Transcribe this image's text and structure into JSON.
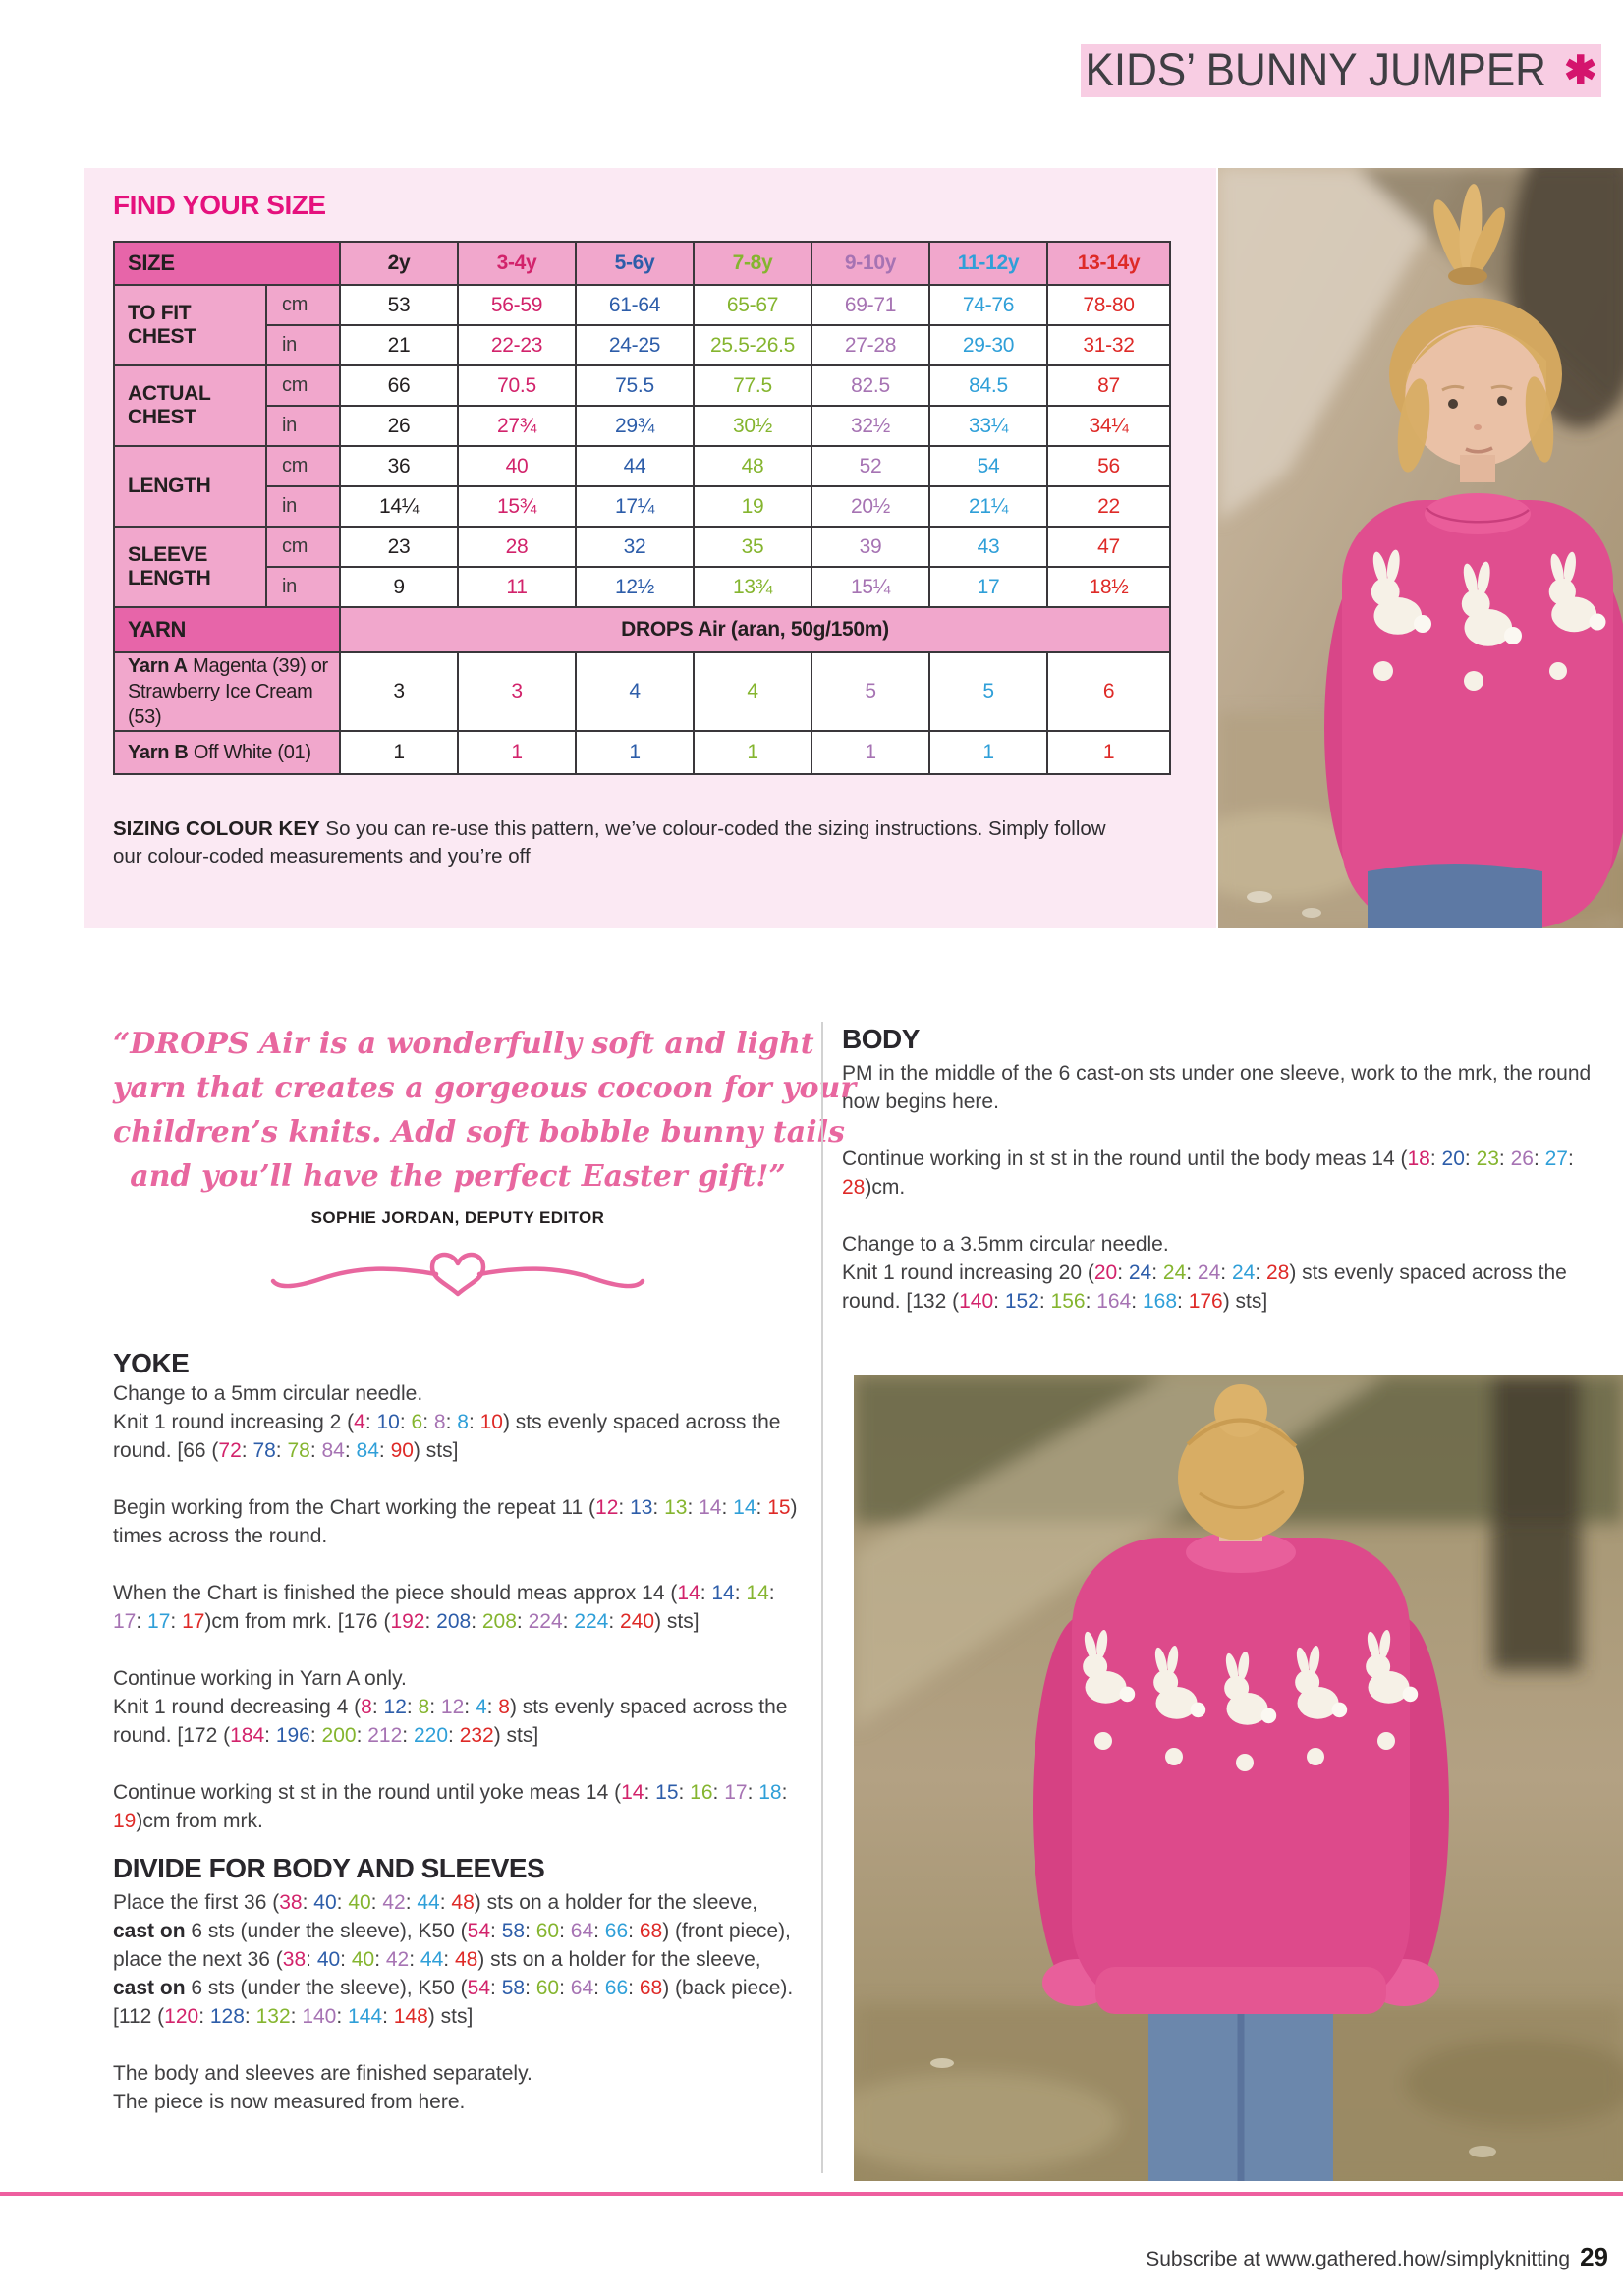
{
  "header": {
    "title": "KIDS’ BUNNY JUMPER",
    "flower_glyph": "✱"
  },
  "colors": {
    "accent_magenta": "#e5117d",
    "panel_pink": "#fbe9f3",
    "title_bar_pink": "#f8cde3",
    "table_corner_pink": "#e765a9",
    "table_label_pink": "#f1a7cc",
    "footer_rule_pink": "#ee5f9f",
    "size_text_colors": {
      "s1": "#231f20",
      "s2": "#d2236b",
      "s3": "#2d5da9",
      "s4": "#85b52f",
      "s5": "#a673b3",
      "s6": "#2f9fd8",
      "s7": "#de2a27"
    }
  },
  "size_table": {
    "heading": "FIND YOUR SIZE",
    "corner_label": "SIZE",
    "columns": [
      "2y",
      "3-4y",
      "5-6y",
      "7-8y",
      "9-10y",
      "11-12y",
      "13-14y"
    ],
    "units": [
      "cm",
      "in"
    ],
    "groups": [
      {
        "label": "TO FIT CHEST",
        "cm": [
          "53",
          "56-59",
          "61-64",
          "65-67",
          "69-71",
          "74-76",
          "78-80"
        ],
        "in": [
          "21",
          "22-23",
          "24-25",
          "25.5-26.5",
          "27-28",
          "29-30",
          "31-32"
        ]
      },
      {
        "label": "ACTUAL CHEST",
        "cm": [
          "66",
          "70.5",
          "75.5",
          "77.5",
          "82.5",
          "84.5",
          "87"
        ],
        "in": [
          "26",
          "27¾",
          "29¾",
          "30½",
          "32½",
          "33¼",
          "34¼"
        ]
      },
      {
        "label": "LENGTH",
        "cm": [
          "36",
          "40",
          "44",
          "48",
          "52",
          "54",
          "56"
        ],
        "in": [
          "14¼",
          "15¾",
          "17¼",
          "19",
          "20½",
          "21¼",
          "22"
        ]
      },
      {
        "label": "SLEEVE LENGTH",
        "cm": [
          "23",
          "28",
          "32",
          "35",
          "39",
          "43",
          "47"
        ],
        "in": [
          "9",
          "11",
          "12½",
          "13¾",
          "15¼",
          "17",
          "18½"
        ]
      }
    ],
    "yarn_label": "YARN",
    "yarn_value": "DROPS Air (aran, 50g/150m)",
    "yarn_a": {
      "bold": "Yarn A",
      "rest": " Magenta (39) or Strawberry Ice Cream (53)",
      "values": [
        "3",
        "3",
        "4",
        "4",
        "5",
        "5",
        "6"
      ]
    },
    "yarn_b": {
      "bold": "Yarn B",
      "rest": " Off White (01)",
      "values": [
        "1",
        "1",
        "1",
        "1",
        "1",
        "1",
        "1"
      ]
    }
  },
  "sizing_key": {
    "bold": "SIZING COLOUR KEY",
    "text": " So you can re-use this pattern, we’ve colour-coded the sizing instructions. Simply follow our colour-coded measurements and you’re off"
  },
  "quote": {
    "lines": [
      "“DROPS Air is a wonderfully soft and light",
      "yarn that creates a gorgeous cocoon for your",
      "children’s knits. Add soft bobble bunny tails",
      "and you’ll have the perfect Easter gift!”"
    ],
    "attribution": "SOPHIE JORDAN, DEPUTY EDITOR"
  },
  "sections": {
    "yoke": {
      "heading": "YOKE",
      "paras": [
        [
          {
            "t": "Change to a 5mm circular needle."
          }
        ],
        [
          {
            "t": "Knit 1 round increasing 2 ("
          },
          {
            "t": "4",
            "c": "s2"
          },
          {
            "t": ": "
          },
          {
            "t": "10",
            "c": "s3"
          },
          {
            "t": ": "
          },
          {
            "t": "6",
            "c": "s4"
          },
          {
            "t": ": "
          },
          {
            "t": "8",
            "c": "s5"
          },
          {
            "t": ": "
          },
          {
            "t": "8",
            "c": "s6"
          },
          {
            "t": ": "
          },
          {
            "t": "10",
            "c": "s7"
          },
          {
            "t": ") sts evenly spaced across the round. [66 ("
          },
          {
            "t": "72",
            "c": "s2"
          },
          {
            "t": ": "
          },
          {
            "t": "78",
            "c": "s3"
          },
          {
            "t": ": "
          },
          {
            "t": "78",
            "c": "s4"
          },
          {
            "t": ": "
          },
          {
            "t": "84",
            "c": "s5"
          },
          {
            "t": ": "
          },
          {
            "t": "84",
            "c": "s6"
          },
          {
            "t": ": "
          },
          {
            "t": "90",
            "c": "s7"
          },
          {
            "t": ") sts]"
          }
        ],
        [
          {
            "t": "Begin working from the Chart working the repeat 11 ("
          },
          {
            "t": "12",
            "c": "s2"
          },
          {
            "t": ": "
          },
          {
            "t": "13",
            "c": "s3"
          },
          {
            "t": ": "
          },
          {
            "t": "13",
            "c": "s4"
          },
          {
            "t": ": "
          },
          {
            "t": "14",
            "c": "s5"
          },
          {
            "t": ": "
          },
          {
            "t": "14",
            "c": "s6"
          },
          {
            "t": ": "
          },
          {
            "t": "15",
            "c": "s7"
          },
          {
            "t": ") times across the round."
          }
        ],
        [
          {
            "t": "When the Chart is finished the piece should meas approx 14 ("
          },
          {
            "t": "14",
            "c": "s2"
          },
          {
            "t": ": "
          },
          {
            "t": "14",
            "c": "s3"
          },
          {
            "t": ": "
          },
          {
            "t": "14",
            "c": "s4"
          },
          {
            "t": ": "
          },
          {
            "t": "17",
            "c": "s5"
          },
          {
            "t": ": "
          },
          {
            "t": "17",
            "c": "s6"
          },
          {
            "t": ": "
          },
          {
            "t": "17",
            "c": "s7"
          },
          {
            "t": ")cm from mrk. [176 ("
          },
          {
            "t": "192",
            "c": "s2"
          },
          {
            "t": ": "
          },
          {
            "t": "208",
            "c": "s3"
          },
          {
            "t": ": "
          },
          {
            "t": "208",
            "c": "s4"
          },
          {
            "t": ": "
          },
          {
            "t": "224",
            "c": "s5"
          },
          {
            "t": ": "
          },
          {
            "t": "224",
            "c": "s6"
          },
          {
            "t": ": "
          },
          {
            "t": "240",
            "c": "s7"
          },
          {
            "t": ") sts]"
          }
        ],
        [
          {
            "t": "Continue working in Yarn A only."
          }
        ],
        [
          {
            "t": "Knit 1 round decreasing 4 ("
          },
          {
            "t": "8",
            "c": "s2"
          },
          {
            "t": ": "
          },
          {
            "t": "12",
            "c": "s3"
          },
          {
            "t": ": "
          },
          {
            "t": "8",
            "c": "s4"
          },
          {
            "t": ": "
          },
          {
            "t": "12",
            "c": "s5"
          },
          {
            "t": ": "
          },
          {
            "t": "4",
            "c": "s6"
          },
          {
            "t": ": "
          },
          {
            "t": "8",
            "c": "s7"
          },
          {
            "t": ") sts evenly spaced across the round. [172 ("
          },
          {
            "t": "184",
            "c": "s2"
          },
          {
            "t": ": "
          },
          {
            "t": "196",
            "c": "s3"
          },
          {
            "t": ": "
          },
          {
            "t": "200",
            "c": "s4"
          },
          {
            "t": ": "
          },
          {
            "t": "212",
            "c": "s5"
          },
          {
            "t": ": "
          },
          {
            "t": "220",
            "c": "s6"
          },
          {
            "t": ": "
          },
          {
            "t": "232",
            "c": "s7"
          },
          {
            "t": ") sts]"
          }
        ],
        [
          {
            "t": "Continue working st st in the round until yoke meas 14 ("
          },
          {
            "t": "14",
            "c": "s2"
          },
          {
            "t": ": "
          },
          {
            "t": "15",
            "c": "s3"
          },
          {
            "t": ": "
          },
          {
            "t": "16",
            "c": "s4"
          },
          {
            "t": ": "
          },
          {
            "t": "17",
            "c": "s5"
          },
          {
            "t": ": "
          },
          {
            "t": "18",
            "c": "s6"
          },
          {
            "t": ": "
          },
          {
            "t": "19",
            "c": "s7"
          },
          {
            "t": ")cm from mrk."
          }
        ]
      ]
    },
    "divide": {
      "heading": "DIVIDE FOR BODY AND SLEEVES",
      "paras": [
        [
          {
            "t": "Place the first 36 ("
          },
          {
            "t": "38",
            "c": "s2"
          },
          {
            "t": ": "
          },
          {
            "t": "40",
            "c": "s3"
          },
          {
            "t": ": "
          },
          {
            "t": "40",
            "c": "s4"
          },
          {
            "t": ": "
          },
          {
            "t": "42",
            "c": "s5"
          },
          {
            "t": ": "
          },
          {
            "t": "44",
            "c": "s6"
          },
          {
            "t": ": "
          },
          {
            "t": "48",
            "c": "s7"
          },
          {
            "t": ") sts on a holder for the sleeve, "
          },
          {
            "t": "cast on",
            "b": true
          },
          {
            "t": " 6 sts (under the sleeve), K50 ("
          },
          {
            "t": "54",
            "c": "s2"
          },
          {
            "t": ": "
          },
          {
            "t": "58",
            "c": "s3"
          },
          {
            "t": ": "
          },
          {
            "t": "60",
            "c": "s4"
          },
          {
            "t": ": "
          },
          {
            "t": "64",
            "c": "s5"
          },
          {
            "t": ": "
          },
          {
            "t": "66",
            "c": "s6"
          },
          {
            "t": ": "
          },
          {
            "t": "68",
            "c": "s7"
          },
          {
            "t": ") (front piece), place the next 36 ("
          },
          {
            "t": "38",
            "c": "s2"
          },
          {
            "t": ": "
          },
          {
            "t": "40",
            "c": "s3"
          },
          {
            "t": ": "
          },
          {
            "t": "40",
            "c": "s4"
          },
          {
            "t": ": "
          },
          {
            "t": "42",
            "c": "s5"
          },
          {
            "t": ": "
          },
          {
            "t": "44",
            "c": "s6"
          },
          {
            "t": ": "
          },
          {
            "t": "48",
            "c": "s7"
          },
          {
            "t": ") sts on a holder for the sleeve, "
          },
          {
            "t": "cast on",
            "b": true
          },
          {
            "t": " 6 sts (under the sleeve), K50 ("
          },
          {
            "t": "54",
            "c": "s2"
          },
          {
            "t": ": "
          },
          {
            "t": "58",
            "c": "s3"
          },
          {
            "t": ": "
          },
          {
            "t": "60",
            "c": "s4"
          },
          {
            "t": ": "
          },
          {
            "t": "64",
            "c": "s5"
          },
          {
            "t": ": "
          },
          {
            "t": "66",
            "c": "s6"
          },
          {
            "t": ": "
          },
          {
            "t": "68",
            "c": "s7"
          },
          {
            "t": ") (back piece). [112 ("
          },
          {
            "t": "120",
            "c": "s2"
          },
          {
            "t": ": "
          },
          {
            "t": "128",
            "c": "s3"
          },
          {
            "t": ": "
          },
          {
            "t": "132",
            "c": "s4"
          },
          {
            "t": ": "
          },
          {
            "t": "140",
            "c": "s5"
          },
          {
            "t": ": "
          },
          {
            "t": "144",
            "c": "s6"
          },
          {
            "t": ": "
          },
          {
            "t": "148",
            "c": "s7"
          },
          {
            "t": ") sts]"
          }
        ],
        [
          {
            "t": "The body and sleeves are finished separately."
          }
        ],
        [
          {
            "t": "The piece is now measured from here."
          }
        ]
      ]
    },
    "body": {
      "heading": "BODY",
      "paras": [
        [
          {
            "t": "PM in the middle of the 6 cast-on sts under one sleeve, work to the mrk, the round now begins here."
          }
        ],
        [
          {
            "t": "Continue working in st st in the round until the body meas 14 ("
          },
          {
            "t": "18",
            "c": "s2"
          },
          {
            "t": ": "
          },
          {
            "t": "20",
            "c": "s3"
          },
          {
            "t": ": "
          },
          {
            "t": "23",
            "c": "s4"
          },
          {
            "t": ": "
          },
          {
            "t": "26",
            "c": "s5"
          },
          {
            "t": ": "
          },
          {
            "t": "27",
            "c": "s6"
          },
          {
            "t": ": "
          },
          {
            "t": "28",
            "c": "s7"
          },
          {
            "t": ")cm."
          }
        ],
        [
          {
            "t": "Change to a 3.5mm circular needle."
          }
        ],
        [
          {
            "t": "Knit 1 round increasing 20 ("
          },
          {
            "t": "20",
            "c": "s2"
          },
          {
            "t": ": "
          },
          {
            "t": "24",
            "c": "s3"
          },
          {
            "t": ": "
          },
          {
            "t": "24",
            "c": "s4"
          },
          {
            "t": ": "
          },
          {
            "t": "24",
            "c": "s5"
          },
          {
            "t": ": "
          },
          {
            "t": "24",
            "c": "s6"
          },
          {
            "t": ": "
          },
          {
            "t": "28",
            "c": "s7"
          },
          {
            "t": ") sts evenly spaced across the round. [132 ("
          },
          {
            "t": "140",
            "c": "s2"
          },
          {
            "t": ": "
          },
          {
            "t": "152",
            "c": "s3"
          },
          {
            "t": ": "
          },
          {
            "t": "156",
            "c": "s4"
          },
          {
            "t": ": "
          },
          {
            "t": "164",
            "c": "s5"
          },
          {
            "t": ": "
          },
          {
            "t": "168",
            "c": "s6"
          },
          {
            "t": ": "
          },
          {
            "t": "176",
            "c": "s7"
          },
          {
            "t": ") sts]"
          }
        ]
      ]
    }
  },
  "footer": {
    "subscribe_text": "Subscribe at www.gathered.how/simplyknitting",
    "page_number": "29"
  }
}
